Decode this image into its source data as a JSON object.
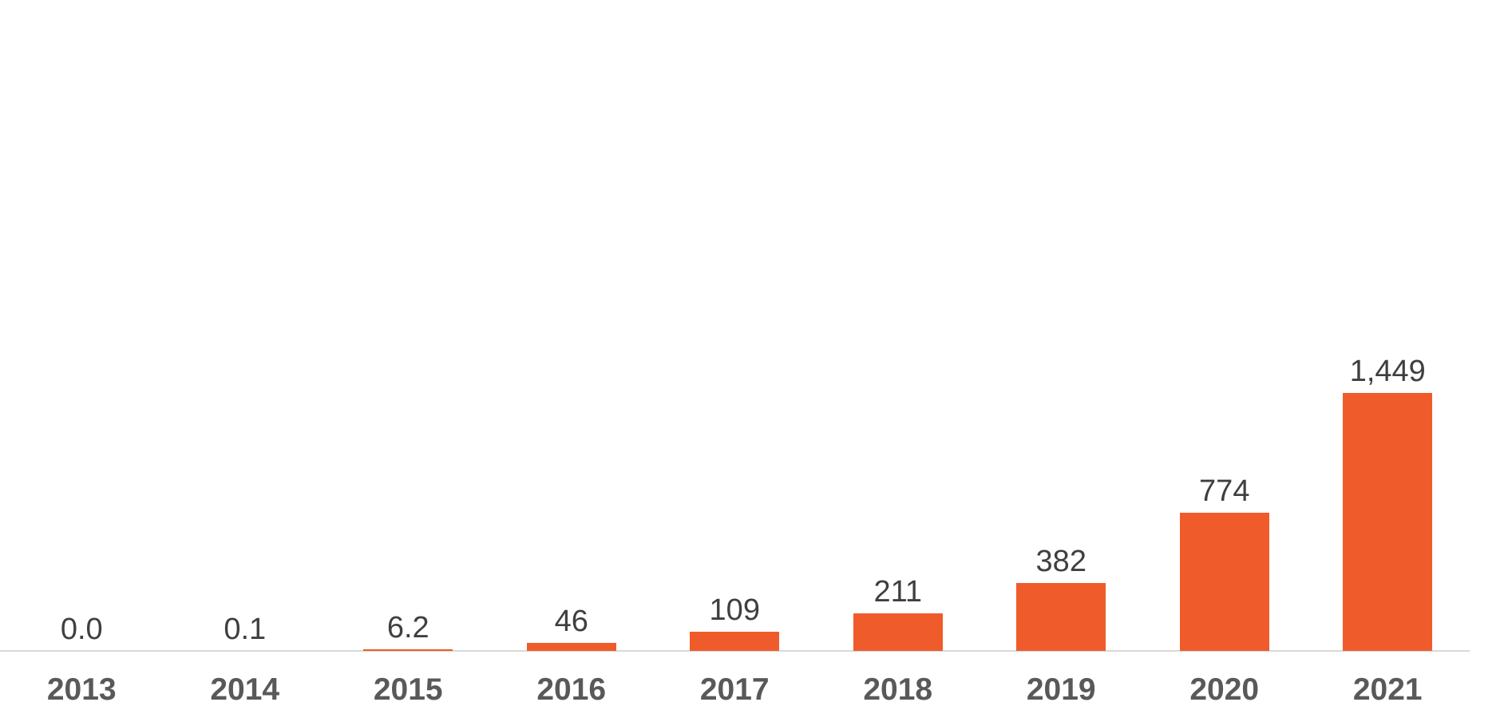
{
  "chart_data": {
    "type": "bar",
    "categories": [
      "2013",
      "2014",
      "2015",
      "2016",
      "2017",
      "2018",
      "2019",
      "2020",
      "2021"
    ],
    "values": [
      0.0,
      0.1,
      6.2,
      46,
      109,
      211,
      382,
      774,
      1449
    ],
    "value_labels": [
      "0.0",
      "0.1",
      "6.2",
      "46",
      "109",
      "211",
      "382",
      "774",
      "1,449"
    ],
    "title": "",
    "xlabel": "",
    "ylabel": "",
    "ylim": [
      0,
      1449
    ],
    "grid": false,
    "legend": false,
    "colors": {
      "bar": "#F05B2B",
      "value_label": "#3F3F3F",
      "category_label": "#595959",
      "axis_line": "#D9D9D9",
      "background": "#FFFFFF"
    }
  }
}
